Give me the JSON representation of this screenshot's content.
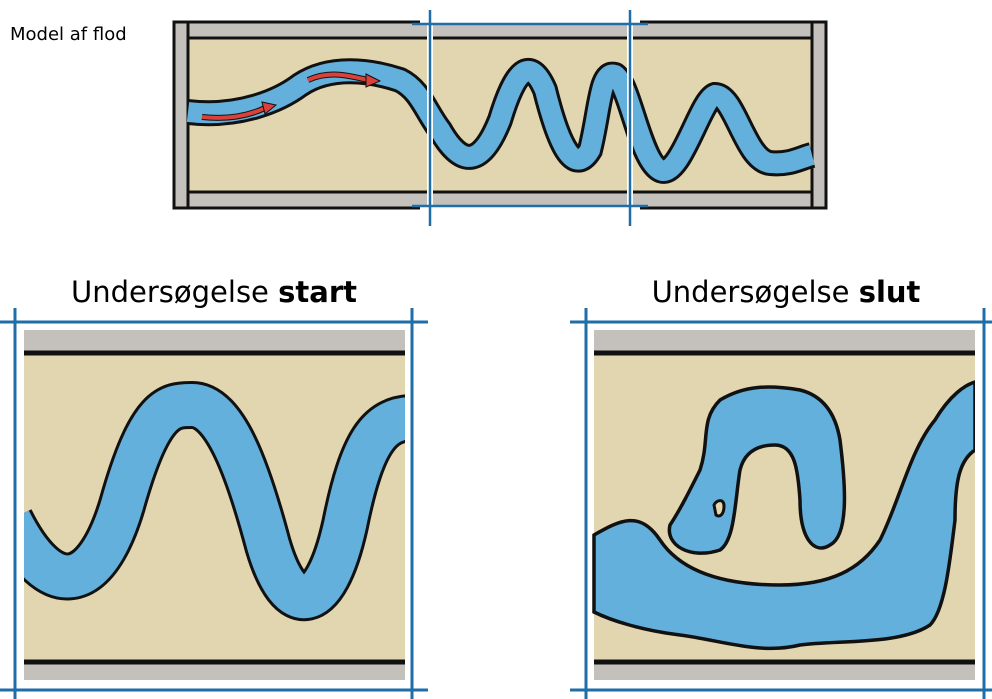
{
  "model_label": "Model af flod",
  "panels": [
    {
      "title": "Undersøgelse",
      "emphasis": "start"
    },
    {
      "title": "Undersøgelse",
      "emphasis": "slut"
    }
  ]
}
